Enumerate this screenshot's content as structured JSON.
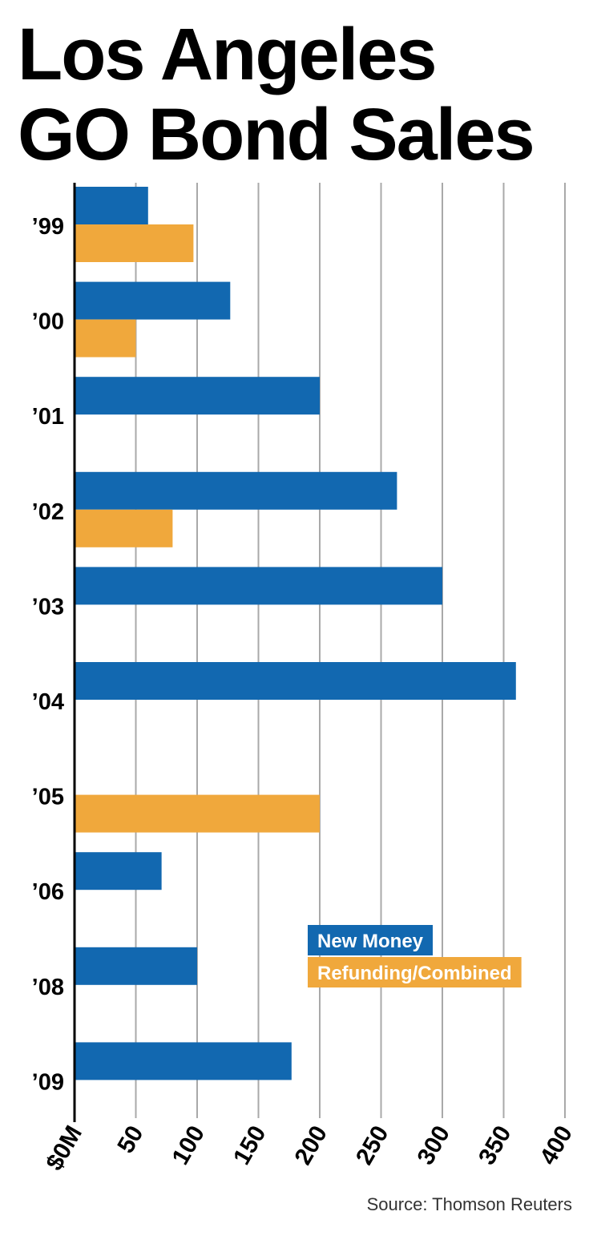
{
  "chart_data": {
    "type": "bar",
    "orientation": "horizontal",
    "title": [
      "Los Angeles",
      "GO Bond Sales"
    ],
    "source": "Source: Thomson Reuters",
    "categories": [
      "’99",
      "’00",
      "’01",
      "’02",
      "’03",
      "’04",
      "’05",
      "’06",
      "’08",
      "’09"
    ],
    "series": [
      {
        "name": "New Money",
        "color": "#1268b0",
        "values": [
          60,
          127,
          200,
          263,
          300,
          360,
          null,
          71,
          100,
          177
        ]
      },
      {
        "name": "Refunding/Combined",
        "color": "#f0a83c",
        "values": [
          97,
          50,
          null,
          80,
          null,
          null,
          200,
          null,
          null,
          null
        ]
      }
    ],
    "xlim": [
      0,
      400
    ],
    "x_ticks": [
      0,
      50,
      100,
      150,
      200,
      250,
      300,
      350,
      400
    ],
    "x_tick_labels": [
      "$0M",
      "50",
      "100",
      "150",
      "200",
      "250",
      "300",
      "350",
      "400"
    ],
    "grid": "vertical",
    "legend": {
      "placement": "bottom-right"
    }
  }
}
